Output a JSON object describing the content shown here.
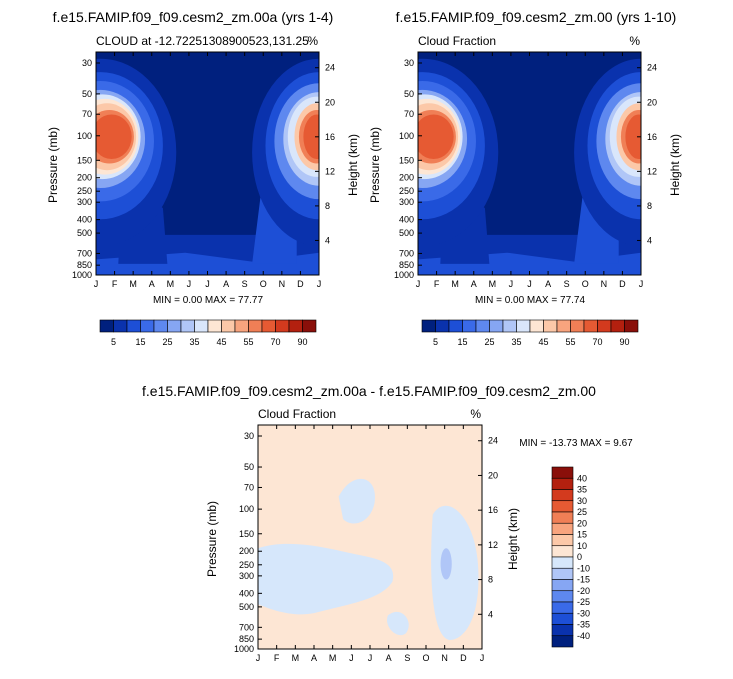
{
  "chart_data": [
    {
      "type": "heatmap",
      "id": "p1",
      "title": "f.e15.FAMIP.f09_f09.cesm2_zm.00a (yrs 1-4)",
      "left_label": "CLOUD at -12.7225130890052​3,131.25",
      "left_label_plain": "CLOUD at -12.72251308900523,131.25",
      "right_label": "%",
      "ylabel": "Pressure (mb)",
      "y2label": "Height (km)",
      "x_ticks": [
        "J",
        "F",
        "M",
        "A",
        "M",
        "J",
        "J",
        "A",
        "S",
        "O",
        "N",
        "D",
        "J"
      ],
      "y_ticks": [
        30,
        50,
        70,
        100,
        150,
        200,
        250,
        300,
        400,
        500,
        700,
        850,
        1000
      ],
      "y2_ticks": [
        24,
        20,
        16,
        12,
        8,
        4
      ],
      "stats": "MIN =   0.00 MAX =  77.77",
      "min": 0.0,
      "max": 77.77,
      "colorbar": {
        "labels": [
          "5",
          "15",
          "25",
          "35",
          "45",
          "55",
          "70",
          "90"
        ]
      }
    },
    {
      "type": "heatmap",
      "id": "p2",
      "title": "f.e15.FAMIP.f09_f09.cesm2_zm.00 (yrs 1-10)",
      "left_label": "Cloud Fraction",
      "right_label": "%",
      "ylabel": "Pressure (mb)",
      "y2label": "Height (km)",
      "x_ticks": [
        "J",
        "F",
        "M",
        "A",
        "M",
        "J",
        "J",
        "A",
        "S",
        "O",
        "N",
        "D",
        "J"
      ],
      "y_ticks": [
        30,
        50,
        70,
        100,
        150,
        200,
        250,
        300,
        400,
        500,
        700,
        850,
        1000
      ],
      "y2_ticks": [
        24,
        20,
        16,
        12,
        8,
        4
      ],
      "stats": "MIN =   0.00 MAX =  77.74",
      "min": 0.0,
      "max": 77.74,
      "colorbar": {
        "labels": [
          "5",
          "15",
          "25",
          "35",
          "45",
          "55",
          "70",
          "90"
        ]
      }
    },
    {
      "type": "heatmap",
      "id": "p3",
      "title": "f.e15.FAMIP.f09_f09.cesm2_zm.00a - f.e15.FAMIP.f09_f09.cesm2_zm.00",
      "left_label": "Cloud Fraction",
      "right_label": "%",
      "ylabel": "Pressure (mb)",
      "y2label": "Height (km)",
      "x_ticks": [
        "J",
        "F",
        "M",
        "A",
        "M",
        "J",
        "J",
        "A",
        "S",
        "O",
        "N",
        "D",
        "J"
      ],
      "y_ticks": [
        30,
        50,
        70,
        100,
        150,
        200,
        250,
        300,
        400,
        500,
        700,
        850,
        1000
      ],
      "y2_ticks": [
        24,
        20,
        16,
        12,
        8,
        4
      ],
      "stats": "MIN = -13.73 MAX =   9.67",
      "min": -13.73,
      "max": 9.67,
      "colorbar": {
        "labels": [
          "40",
          "35",
          "30",
          "25",
          "20",
          "15",
          "10",
          "0",
          "-10",
          "-15",
          "-20",
          "-25",
          "-30",
          "-35",
          "-40"
        ]
      }
    }
  ],
  "colors": {
    "background_deep": "#00207e",
    "seq_scale": [
      "#00207e",
      "#0a32ad",
      "#1d4fd6",
      "#3a6ae8",
      "#5e88ef",
      "#86a6f3",
      "#b0c6f7",
      "#d9e6fb",
      "#fde6d4",
      "#fcc8a8",
      "#f8a47e",
      "#f07f56",
      "#e65a33",
      "#d33a1e",
      "#b3200f",
      "#8a0f0a"
    ],
    "div_scale": [
      "#8a0f0a",
      "#b3200f",
      "#d33a1e",
      "#e65a33",
      "#f07f56",
      "#f8a47e",
      "#fcc8a8",
      "#fde6d4",
      "#d6e7fb",
      "#b0c6f7",
      "#86a6f3",
      "#5e88ef",
      "#3a6ae8",
      "#1d4fd6",
      "#0a32ad",
      "#00207e"
    ],
    "diff_background": "#fde6d4",
    "diff_blue": "#d6e7fb",
    "diff_blue_dark": "#b0c6f7"
  }
}
